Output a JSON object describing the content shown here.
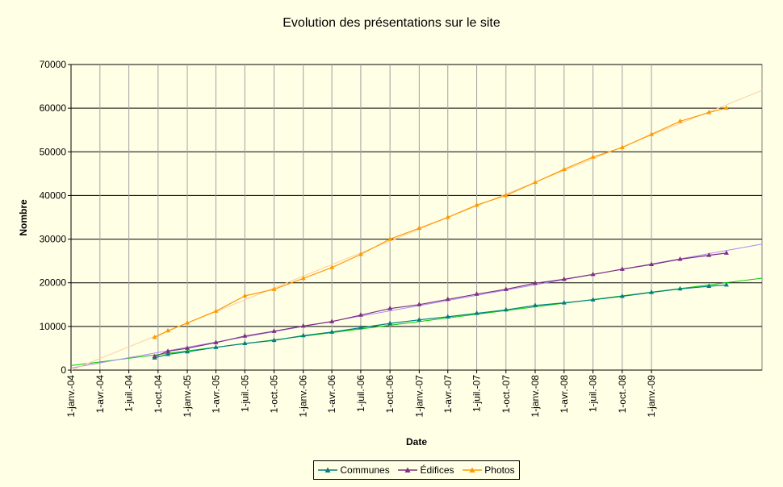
{
  "chart_data": {
    "type": "line",
    "title": "Evolution des présentations sur le site",
    "xlabel": "Date",
    "ylabel": "Nombre",
    "ylim": [
      0,
      70000
    ],
    "yticks": [
      "0",
      "10000",
      "20000",
      "30000",
      "40000",
      "50000",
      "60000",
      "70000"
    ],
    "xlim": [
      "2004-01-01",
      "2009-12-15"
    ],
    "xticks": [
      {
        "date": "2004-01-01",
        "label": "1-janv.-04"
      },
      {
        "date": "2004-04-01",
        "label": "1-avr.-04"
      },
      {
        "date": "2004-07-01",
        "label": "1-juil.-04"
      },
      {
        "date": "2004-10-01",
        "label": "1-oct.-04"
      },
      {
        "date": "2005-01-01",
        "label": "1-janv.-05"
      },
      {
        "date": "2005-04-01",
        "label": "1-avr.-05"
      },
      {
        "date": "2005-07-01",
        "label": "1-juil.-05"
      },
      {
        "date": "2005-10-01",
        "label": "1-oct.-05"
      },
      {
        "date": "2006-01-01",
        "label": "1-janv.-06"
      },
      {
        "date": "2006-04-01",
        "label": "1-avr.-06"
      },
      {
        "date": "2006-07-01",
        "label": "1-juil.-06"
      },
      {
        "date": "2006-10-01",
        "label": "1-oct.-06"
      },
      {
        "date": "2007-01-01",
        "label": "1-janv.-07"
      },
      {
        "date": "2007-04-01",
        "label": "1-avr.-07"
      },
      {
        "date": "2007-07-01",
        "label": "1-juil.-07"
      },
      {
        "date": "2007-10-01",
        "label": "1-oct.-07"
      },
      {
        "date": "2008-01-01",
        "label": "1-janv.-08"
      },
      {
        "date": "2008-04-01",
        "label": "1-avr.-08"
      },
      {
        "date": "2008-07-01",
        "label": "1-juil.-08"
      },
      {
        "date": "2008-10-01",
        "label": "1-oct.-08"
      },
      {
        "date": "2009-01-01",
        "label": "1-janv.-09"
      }
    ],
    "grid": "both",
    "legend_position": "bottom",
    "series": [
      {
        "name": "Communes",
        "color": "#007f7f",
        "trend_color": "#00cc00",
        "points": [
          [
            "2004-09-20",
            2800
          ],
          [
            "2004-11-01",
            3600
          ],
          [
            "2005-01-01",
            4200
          ],
          [
            "2005-04-01",
            5200
          ],
          [
            "2005-07-01",
            6100
          ],
          [
            "2005-10-01",
            6800
          ],
          [
            "2006-01-01",
            7900
          ],
          [
            "2006-04-01",
            8700
          ],
          [
            "2006-07-01",
            9700
          ],
          [
            "2006-10-01",
            10700
          ],
          [
            "2007-01-01",
            11500
          ],
          [
            "2007-04-01",
            12200
          ],
          [
            "2007-07-01",
            13000
          ],
          [
            "2007-10-01",
            13800
          ],
          [
            "2008-01-01",
            14800
          ],
          [
            "2008-04-01",
            15400
          ],
          [
            "2008-07-01",
            16100
          ],
          [
            "2008-10-01",
            16900
          ],
          [
            "2009-01-01",
            17800
          ],
          [
            "2009-04-01",
            18600
          ],
          [
            "2009-07-01",
            19200
          ],
          [
            "2009-08-25",
            19500
          ]
        ]
      },
      {
        "name": "Édifices",
        "color": "#7f2f7f",
        "trend_color": "#aa88ff",
        "points": [
          [
            "2004-09-20",
            3100
          ],
          [
            "2004-11-01",
            4300
          ],
          [
            "2005-01-01",
            5000
          ],
          [
            "2005-04-01",
            6300
          ],
          [
            "2005-07-01",
            7800
          ],
          [
            "2005-10-01",
            8900
          ],
          [
            "2006-01-01",
            10100
          ],
          [
            "2006-04-01",
            11100
          ],
          [
            "2006-07-01",
            12600
          ],
          [
            "2006-10-01",
            14100
          ],
          [
            "2007-01-01",
            15000
          ],
          [
            "2007-04-01",
            16200
          ],
          [
            "2007-07-01",
            17400
          ],
          [
            "2007-10-01",
            18500
          ],
          [
            "2008-01-01",
            19900
          ],
          [
            "2008-04-01",
            20800
          ],
          [
            "2008-07-01",
            21900
          ],
          [
            "2008-10-01",
            23100
          ],
          [
            "2009-01-01",
            24200
          ],
          [
            "2009-04-01",
            25400
          ],
          [
            "2009-07-01",
            26300
          ],
          [
            "2009-08-25",
            26800
          ]
        ]
      },
      {
        "name": "Photos",
        "color": "#ff9900",
        "trend_color": "#ffcc99",
        "points": [
          [
            "2004-09-20",
            7500
          ],
          [
            "2004-11-01",
            9000
          ],
          [
            "2005-01-01",
            10800
          ],
          [
            "2005-04-01",
            13500
          ],
          [
            "2005-07-01",
            17000
          ],
          [
            "2005-10-01",
            18500
          ],
          [
            "2006-01-01",
            21000
          ],
          [
            "2006-04-01",
            23500
          ],
          [
            "2006-07-01",
            26500
          ],
          [
            "2006-10-01",
            30000
          ],
          [
            "2007-01-01",
            32500
          ],
          [
            "2007-04-01",
            35000
          ],
          [
            "2007-07-01",
            37800
          ],
          [
            "2007-10-01",
            40000
          ],
          [
            "2008-01-01",
            43000
          ],
          [
            "2008-04-01",
            46000
          ],
          [
            "2008-07-01",
            48800
          ],
          [
            "2008-10-01",
            51000
          ],
          [
            "2009-01-01",
            54000
          ],
          [
            "2009-04-01",
            57000
          ],
          [
            "2009-07-01",
            59000
          ],
          [
            "2009-08-25",
            60000
          ]
        ]
      }
    ]
  }
}
